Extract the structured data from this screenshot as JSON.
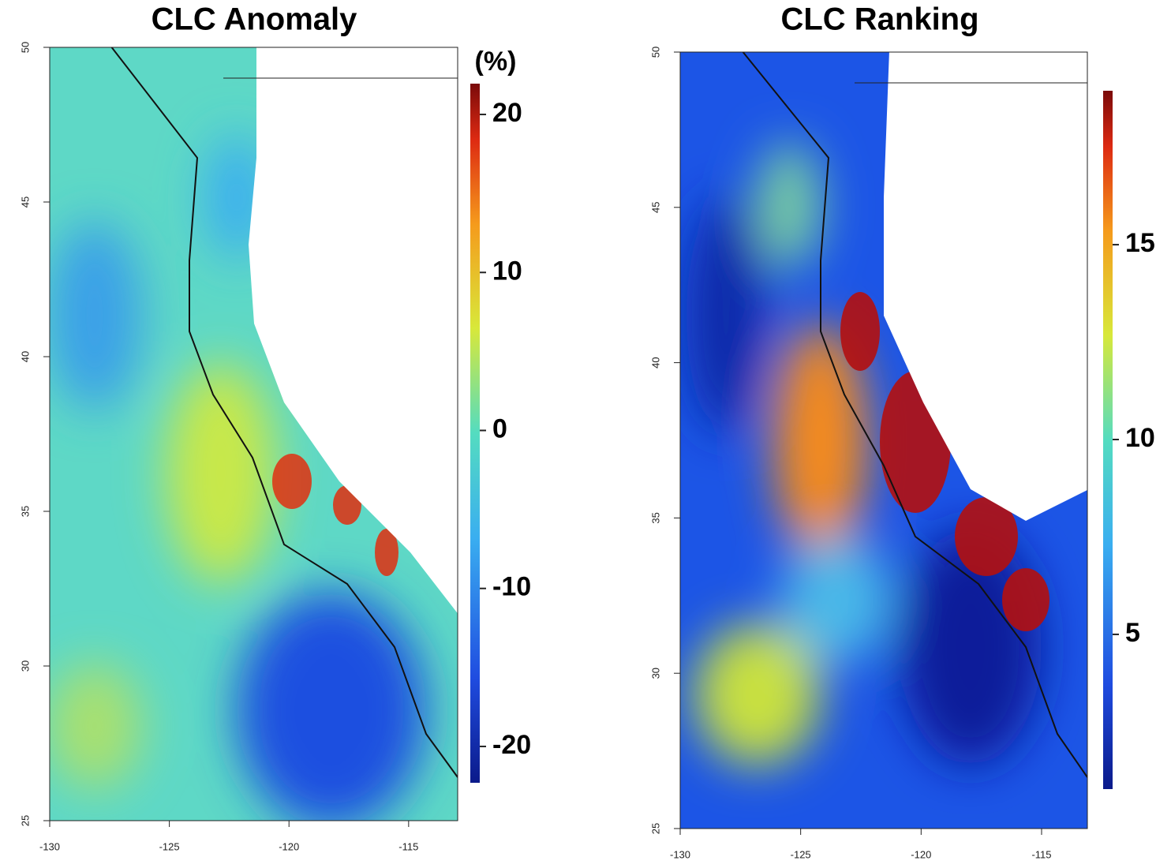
{
  "panels": [
    {
      "title": "CLC Anomaly",
      "xlim": [
        -130,
        -112.95
      ],
      "ylim": [
        25,
        50
      ],
      "xticks": [
        -130,
        -125,
        -120,
        -115
      ],
      "yticks": [
        25,
        30,
        35,
        40,
        45,
        50
      ],
      "colorbar": {
        "unit": "(%)",
        "lim": [
          -22.3,
          21.95
        ],
        "ticks": [
          -20,
          -10,
          0,
          10,
          20
        ]
      }
    },
    {
      "title": "CLC Ranking",
      "xlim": [
        -130,
        -113.1
      ],
      "ylim": [
        25,
        50
      ],
      "xticks": [
        -130,
        -125,
        -120,
        -115
      ],
      "yticks": [
        25,
        30,
        35,
        40,
        45,
        50
      ],
      "colorbar": {
        "lim": [
          1.03,
          18.95
        ],
        "ticks": [
          5,
          10,
          15
        ]
      }
    }
  ]
}
